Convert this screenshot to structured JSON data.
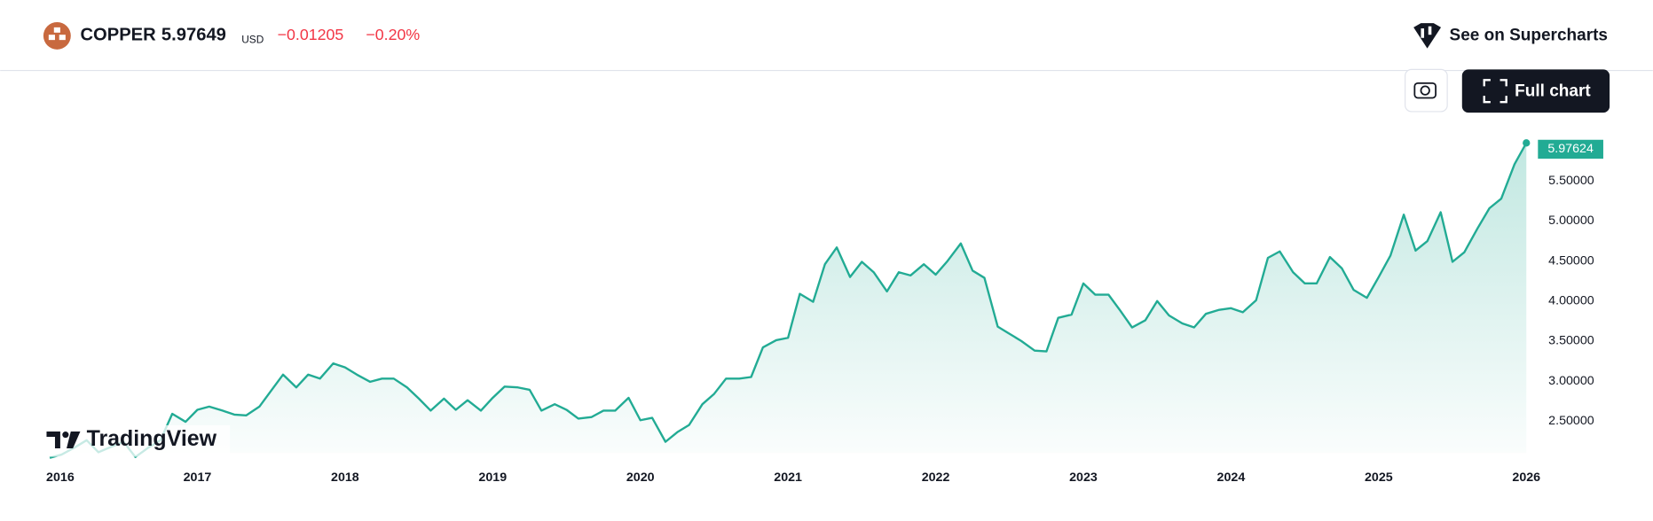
{
  "header": {
    "symbol": "COPPER",
    "price": "5.97649",
    "currency": "USD",
    "change": "−0.01205",
    "change_percent": "−0.20%",
    "link": "See on Supercharts"
  },
  "buttons": {
    "full_chart": "Full chart"
  },
  "logo": "TradingView",
  "chart_data": {
    "type": "area",
    "x": [
      2016,
      2016.08,
      2016.17,
      2016.25,
      2016.33,
      2016.42,
      2016.5,
      2016.58,
      2016.67,
      2016.75,
      2016.83,
      2016.92,
      2017,
      2017.08,
      2017.17,
      2017.25,
      2017.33,
      2017.42,
      2017.5,
      2017.58,
      2017.67,
      2017.75,
      2017.83,
      2017.92,
      2018,
      2018.08,
      2018.17,
      2018.25,
      2018.33,
      2018.42,
      2018.5,
      2018.58,
      2018.67,
      2018.75,
      2018.83,
      2018.92,
      2019,
      2019.08,
      2019.17,
      2019.25,
      2019.33,
      2019.42,
      2019.5,
      2019.58,
      2019.67,
      2019.75,
      2019.83,
      2019.92,
      2020,
      2020.08,
      2020.17,
      2020.25,
      2020.33,
      2020.42,
      2020.5,
      2020.58,
      2020.67,
      2020.75,
      2020.83,
      2020.92,
      2021,
      2021.08,
      2021.17,
      2021.25,
      2021.33,
      2021.42,
      2021.5,
      2021.58,
      2021.67,
      2021.75,
      2021.83,
      2021.92,
      2022,
      2022.08,
      2022.17,
      2022.25,
      2022.33,
      2022.42,
      2022.5,
      2022.58,
      2022.67,
      2022.75,
      2022.83,
      2022.92,
      2023,
      2023.08,
      2023.17,
      2023.25,
      2023.33,
      2023.42,
      2023.5,
      2023.58,
      2023.67,
      2023.75,
      2023.83,
      2023.92,
      2024,
      2024.08,
      2024.17,
      2024.25,
      2024.33,
      2024.42,
      2024.5,
      2024.58,
      2024.67,
      2024.75,
      2024.83,
      2024.92,
      2025,
      2025.08,
      2025.17,
      2025.25,
      2025.33,
      2025.42,
      2025.5,
      2025.58,
      2025.67,
      2025.75,
      2025.83,
      2025.92,
      2026
    ],
    "series": [
      {
        "name": "COPPER",
        "color": "#22ab94",
        "values": [
          2.04,
          2.08,
          2.17,
          2.26,
          2.11,
          2.18,
          2.24,
          2.05,
          2.17,
          2.26,
          2.59,
          2.49,
          2.64,
          2.68,
          2.63,
          2.58,
          2.57,
          2.68,
          2.88,
          3.08,
          2.92,
          3.08,
          3.03,
          3.22,
          3.17,
          3.08,
          2.99,
          3.03,
          3.03,
          2.92,
          2.78,
          2.63,
          2.78,
          2.64,
          2.76,
          2.63,
          2.79,
          2.93,
          2.92,
          2.89,
          2.63,
          2.71,
          2.64,
          2.53,
          2.55,
          2.63,
          2.63,
          2.79,
          2.51,
          2.54,
          2.24,
          2.36,
          2.45,
          2.71,
          2.84,
          3.03,
          3.03,
          3.05,
          3.42,
          3.51,
          3.54,
          4.09,
          3.99,
          4.46,
          4.67,
          4.3,
          4.49,
          4.36,
          4.12,
          4.36,
          4.32,
          4.46,
          4.33,
          4.5,
          4.72,
          4.38,
          4.29,
          3.68,
          3.59,
          3.5,
          3.38,
          3.37,
          3.79,
          3.83,
          4.22,
          4.08,
          4.08,
          3.88,
          3.67,
          3.76,
          4.0,
          3.82,
          3.72,
          3.67,
          3.84,
          3.89,
          3.91,
          3.86,
          4.01,
          4.54,
          4.62,
          4.36,
          4.22,
          4.22,
          4.55,
          4.41,
          4.14,
          4.04,
          4.3,
          4.57,
          5.08,
          4.63,
          4.75,
          5.11,
          4.49,
          4.61,
          4.91,
          5.16,
          5.28,
          5.71,
          5.97624
        ]
      }
    ],
    "xlim": [
      2016,
      2026
    ],
    "xticks": [
      2016,
      2017,
      2018,
      2019,
      2020,
      2021,
      2022,
      2023,
      2024,
      2025,
      2026
    ],
    "ylim": [
      2.1,
      6.2
    ],
    "yticks": [
      {
        "value": 2.5,
        "label": "2.50000"
      },
      {
        "value": 3,
        "label": "3.00000"
      },
      {
        "value": 3.5,
        "label": "3.50000"
      },
      {
        "value": 4,
        "label": "4.00000"
      },
      {
        "value": 4.5,
        "label": "4.50000"
      },
      {
        "value": 5,
        "label": "5.00000"
      },
      {
        "value": 5.5,
        "label": "5.50000"
      }
    ],
    "grid": false
  }
}
